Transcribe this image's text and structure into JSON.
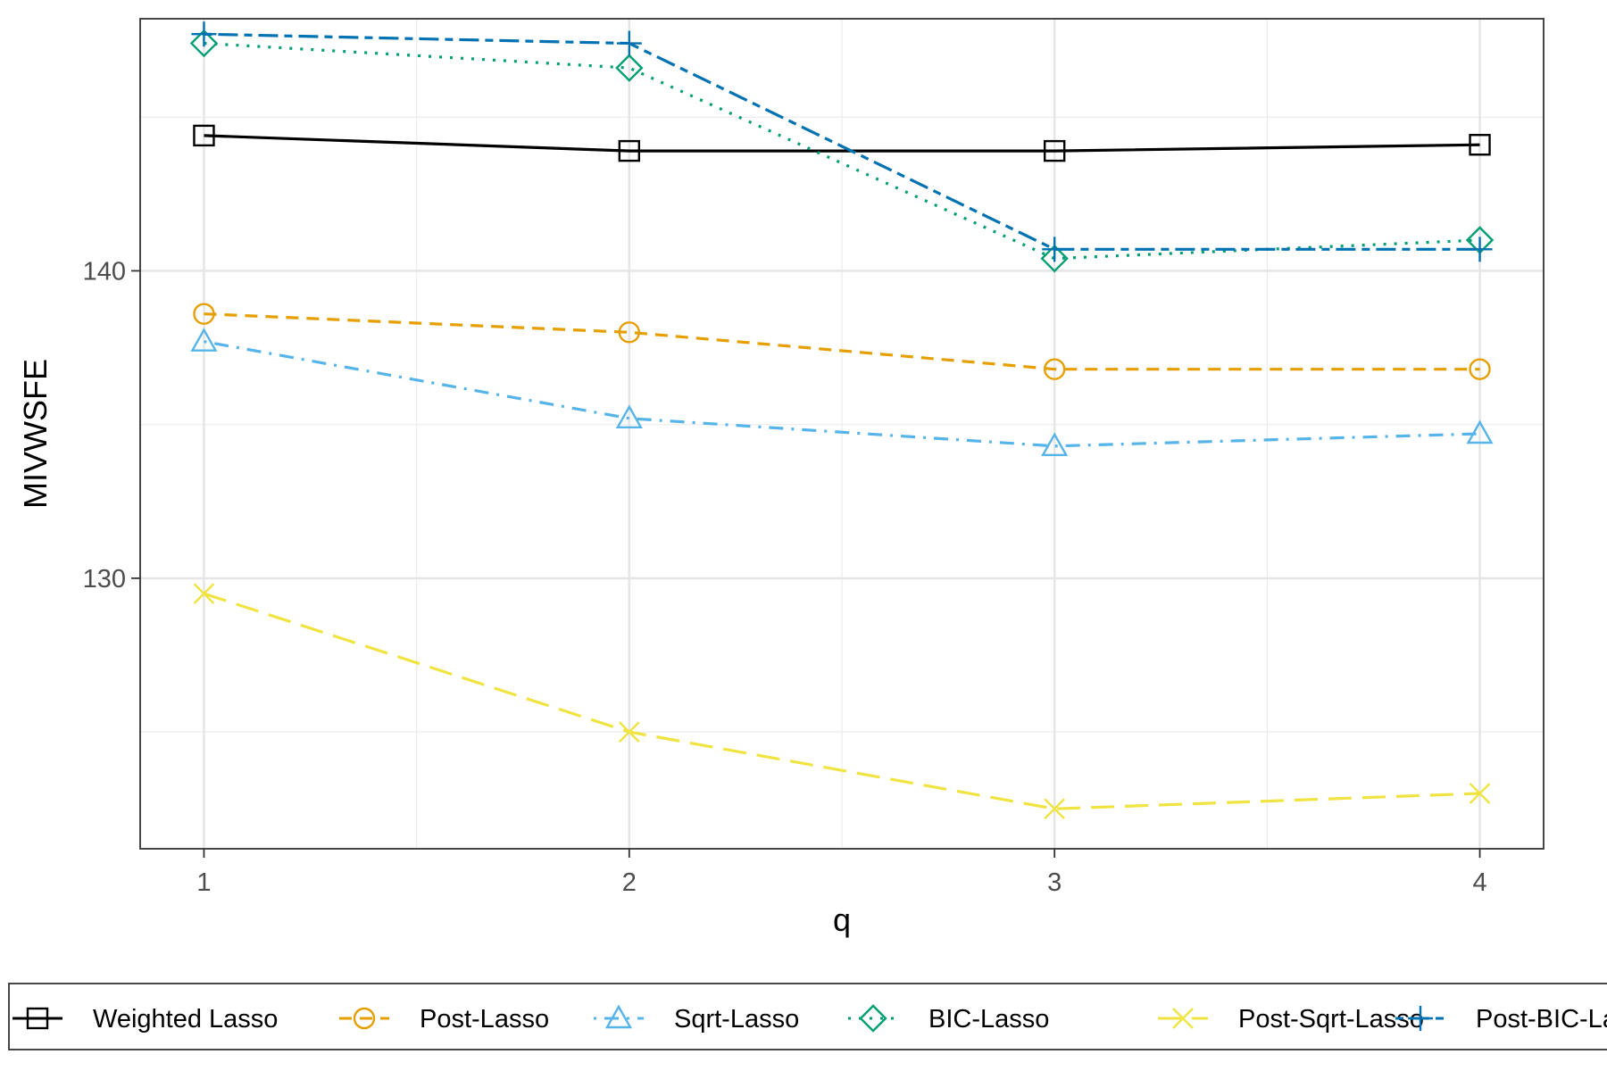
{
  "chart_data": {
    "type": "line",
    "title": "",
    "xlabel": "q",
    "ylabel": "MIVWSFE",
    "x": [
      1,
      2,
      3,
      4
    ],
    "xlim": [
      0.85,
      4.15
    ],
    "ylim": [
      121.2,
      148.2
    ],
    "x_ticks": [
      "1",
      "2",
      "3",
      "4"
    ],
    "y_ticks": [
      "130",
      "140"
    ],
    "grid": true,
    "legend_position": "bottom",
    "series": [
      {
        "name": "Weighted Lasso",
        "values": [
          144.4,
          143.9,
          143.9,
          144.1
        ],
        "color": "#000000",
        "marker": "square",
        "dash": "solid"
      },
      {
        "name": "Post-Lasso",
        "values": [
          138.6,
          138.0,
          136.8,
          136.8
        ],
        "color": "#E69F00",
        "marker": "circle",
        "dash": "dashed"
      },
      {
        "name": "Sqrt-Lasso",
        "values": [
          137.7,
          135.2,
          134.3,
          134.7
        ],
        "color": "#56B4E9",
        "marker": "triangle",
        "dash": "dotdash"
      },
      {
        "name": "BIC-Lasso",
        "values": [
          147.4,
          146.6,
          140.4,
          141.0
        ],
        "color": "#009E73",
        "marker": "diamond",
        "dash": "dotted"
      },
      {
        "name": "Post-Sqrt-Lasso",
        "values": [
          129.5,
          125.0,
          122.5,
          123.0
        ],
        "color": "#F0E442",
        "marker": "x",
        "dash": "longdash"
      },
      {
        "name": "Post-BIC-Lasso",
        "values": [
          147.7,
          147.4,
          140.7,
          140.7
        ],
        "color": "#0072B2",
        "marker": "plus",
        "dash": "twodash"
      }
    ]
  }
}
